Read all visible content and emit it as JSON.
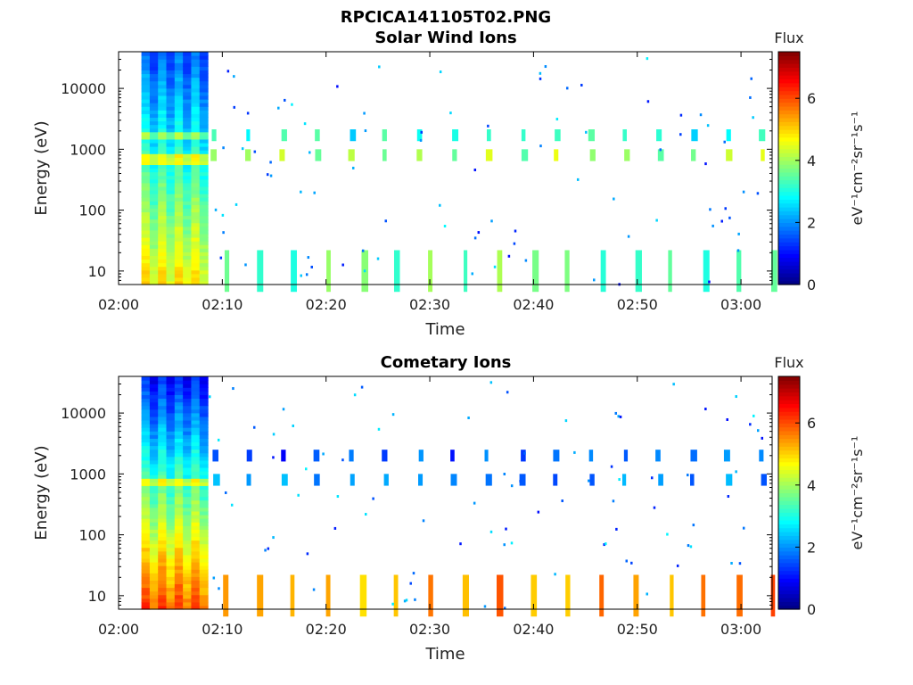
{
  "figure_title": "RPCICA141105T02.PNG",
  "chart_data": [
    {
      "type": "heatmap",
      "title": "Solar Wind Ions",
      "xlabel": "Time",
      "ylabel": "Energy (eV)",
      "x_tick_labels": [
        "02:00",
        "02:10",
        "02:20",
        "02:30",
        "02:40",
        "02:50",
        "03:00"
      ],
      "x_ticks_minutes": [
        0,
        10,
        20,
        30,
        40,
        50,
        60
      ],
      "xlim_minutes": [
        0,
        63
      ],
      "y_scale": "log",
      "y_tick_labels": [
        "10",
        "100",
        "1000",
        "10000"
      ],
      "y_ticks": [
        10,
        100,
        1000,
        10000
      ],
      "ylim": [
        6,
        40000
      ],
      "colorbar": {
        "label": "Flux",
        "unit": "eV⁻¹cm⁻²sr⁻¹s⁻¹",
        "range": [
          0,
          7.5
        ],
        "tick_labels": [
          "0",
          "2",
          "4",
          "6"
        ],
        "ticks": [
          0,
          2,
          4,
          6
        ]
      },
      "data_start_minute": 2.2,
      "dense_block_end_minute": 8.6,
      "repeating_bursts": [
        {
          "energy_eV": 800,
          "flux": 4.0
        },
        {
          "energy_eV": 1700,
          "flux": 3.0
        },
        {
          "energy_eV": 10,
          "flux": 3.5
        }
      ]
    },
    {
      "type": "heatmap",
      "title": "Cometary Ions",
      "xlabel": "Time",
      "ylabel": "Energy (eV)",
      "x_tick_labels": [
        "02:00",
        "02:10",
        "02:20",
        "02:30",
        "02:40",
        "02:50",
        "03:00"
      ],
      "x_ticks_minutes": [
        0,
        10,
        20,
        30,
        40,
        50,
        60
      ],
      "xlim_minutes": [
        0,
        63
      ],
      "y_scale": "log",
      "y_tick_labels": [
        "10",
        "100",
        "1000",
        "10000"
      ],
      "y_ticks": [
        10,
        100,
        1000,
        10000
      ],
      "ylim": [
        6,
        40000
      ],
      "colorbar": {
        "label": "Flux",
        "unit": "eV⁻¹cm⁻²sr⁻¹s⁻¹",
        "range": [
          0,
          7.5
        ],
        "tick_labels": [
          "0",
          "2",
          "4",
          "6"
        ],
        "ticks": [
          0,
          2,
          4,
          6
        ]
      },
      "data_start_minute": 2.2,
      "dense_block_end_minute": 8.6,
      "repeating_bursts": [
        {
          "energy_eV": 800,
          "flux": 2.0
        },
        {
          "energy_eV": 2000,
          "flux": 1.5
        },
        {
          "energy_eV": 10,
          "flux": 5.5
        }
      ]
    }
  ]
}
